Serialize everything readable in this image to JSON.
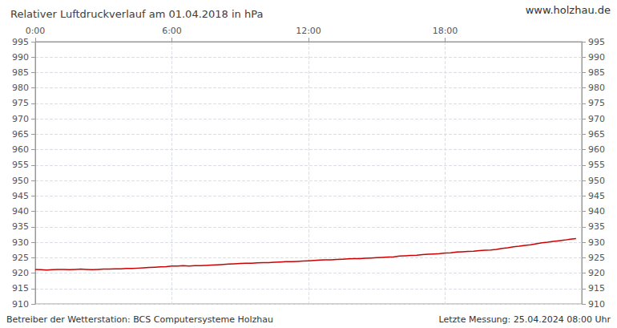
{
  "chart_data": {
    "type": "line",
    "title": "Relativer Luftdruckverlauf am 01.04.2018 in hPa",
    "annotations": [
      "www.holzhau.de",
      "Betreiber der Wetterstation: BCS Computersysteme Holzhau",
      "Letzte Messung: 25.04.2024 08:00 Uhr"
    ],
    "x": [
      0.0,
      0.25,
      0.5,
      0.75,
      1.0,
      1.25,
      1.5,
      1.75,
      2.0,
      2.25,
      2.5,
      2.75,
      3.0,
      3.25,
      3.5,
      3.75,
      4.0,
      4.25,
      4.5,
      4.75,
      5.0,
      5.25,
      5.5,
      5.75,
      6.0,
      6.25,
      6.5,
      6.75,
      7.0,
      7.25,
      7.5,
      7.75,
      8.0,
      8.25,
      8.5,
      8.75,
      9.0,
      9.25,
      9.5,
      9.75,
      10.0,
      10.25,
      10.5,
      10.75,
      11.0,
      11.25,
      11.5,
      11.75,
      12.0,
      12.25,
      12.5,
      12.75,
      13.0,
      13.25,
      13.5,
      13.75,
      14.0,
      14.25,
      14.5,
      14.75,
      15.0,
      15.25,
      15.5,
      15.75,
      16.0,
      16.25,
      16.5,
      16.75,
      17.0,
      17.25,
      17.5,
      17.75,
      18.0,
      18.25,
      18.5,
      18.75,
      19.0,
      19.25,
      19.5,
      19.75,
      20.0,
      20.25,
      20.5,
      20.75,
      21.0,
      21.25,
      21.5,
      21.75,
      22.0,
      22.25,
      22.5,
      22.75,
      23.0,
      23.25,
      23.5,
      23.75
    ],
    "values": [
      921.2,
      921.1,
      921.0,
      921.1,
      921.2,
      921.2,
      921.1,
      921.2,
      921.3,
      921.2,
      921.1,
      921.2,
      921.3,
      921.3,
      921.4,
      921.4,
      921.5,
      921.5,
      921.6,
      921.7,
      921.8,
      921.9,
      922.0,
      922.1,
      922.3,
      922.3,
      922.4,
      922.3,
      922.4,
      922.4,
      922.5,
      922.6,
      922.7,
      922.8,
      922.9,
      923.0,
      923.1,
      923.2,
      923.2,
      923.3,
      923.4,
      923.4,
      923.5,
      923.6,
      923.7,
      923.7,
      923.8,
      923.9,
      924.0,
      924.1,
      924.2,
      924.3,
      924.3,
      924.4,
      924.5,
      924.6,
      924.7,
      924.7,
      924.8,
      924.9,
      925.0,
      925.1,
      925.2,
      925.3,
      925.5,
      925.6,
      925.7,
      925.8,
      926.0,
      926.1,
      926.2,
      926.3,
      926.5,
      926.6,
      926.8,
      926.9,
      927.0,
      927.1,
      927.3,
      927.4,
      927.5,
      927.7,
      928.0,
      928.2,
      928.5,
      928.7,
      929.0,
      929.2,
      929.5,
      929.8,
      930.0,
      930.3,
      930.5,
      930.7,
      931.0,
      931.2
    ],
    "color": "#cc0000",
    "xlim": [
      0,
      24
    ],
    "xticks": [
      {
        "value": 0,
        "label": "0:00"
      },
      {
        "value": 6,
        "label": "6:00"
      },
      {
        "value": 12,
        "label": "12:00"
      },
      {
        "value": 18,
        "label": "18:00"
      }
    ],
    "ylim": [
      910,
      995
    ],
    "yticks": [
      910,
      915,
      920,
      925,
      930,
      935,
      940,
      945,
      950,
      955,
      960,
      965,
      970,
      975,
      980,
      985,
      990,
      995
    ],
    "y2lim": [
      910,
      995
    ],
    "y2ticks": [
      910,
      915,
      920,
      925,
      930,
      935,
      940,
      945,
      950,
      955,
      960,
      965,
      970,
      975,
      980,
      985,
      990,
      995
    ],
    "grid": true
  }
}
